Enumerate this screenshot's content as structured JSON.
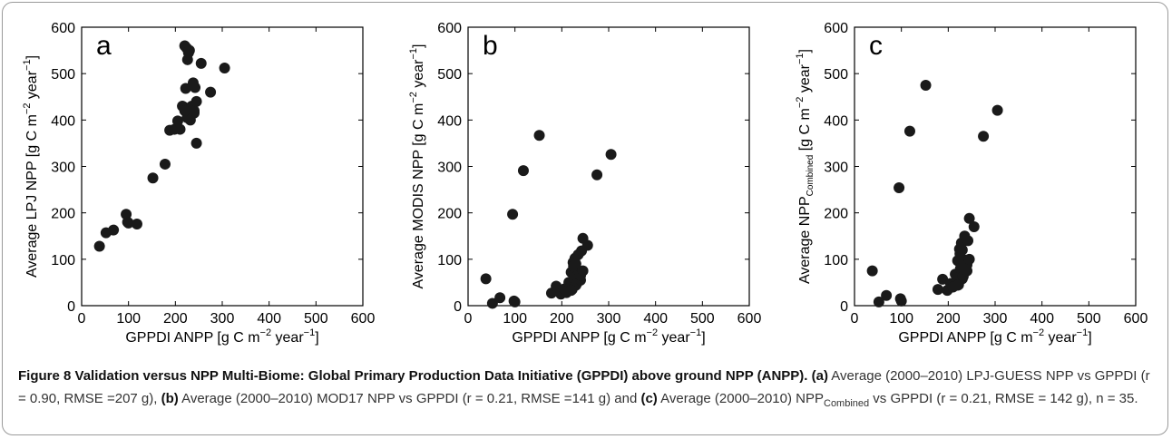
{
  "chart_data": [
    {
      "type": "scatter",
      "panel_label": "a",
      "xlabel": "GPPDI ANPP [g C m",
      "xlabel_sup": "−2",
      "xlabel_tail": "  year",
      "xlabel_sup2": "−1",
      "xlabel_end": "]",
      "ylabel": "Average LPJ NPP [g C m",
      "ylabel_sup": "−2",
      "ylabel_tail": "  year",
      "ylabel_sup2": "−1",
      "ylabel_end": "]",
      "xlim": [
        0,
        600
      ],
      "ylim": [
        0,
        600
      ],
      "xticks": [
        "0",
        "100",
        "200",
        "300",
        "400",
        "500",
        "600"
      ],
      "yticks": [
        "0",
        "100",
        "200",
        "300",
        "400",
        "500",
        "600"
      ],
      "x": [
        38,
        52,
        68,
        95,
        98,
        100,
        118,
        152,
        178,
        188,
        198,
        205,
        215,
        218,
        220,
        222,
        224,
        226,
        228,
        230,
        232,
        235,
        238,
        240,
        242,
        245,
        255,
        275,
        305,
        225,
        210,
        240,
        230,
        220,
        245
      ],
      "y": [
        128,
        157,
        163,
        197,
        180,
        178,
        176,
        275,
        305,
        378,
        380,
        398,
        430,
        428,
        560,
        468,
        555,
        530,
        545,
        425,
        400,
        430,
        480,
        415,
        470,
        350,
        522,
        460,
        512,
        405,
        380,
        420,
        550,
        420,
        440
      ]
    },
    {
      "type": "scatter",
      "panel_label": "b",
      "xlabel": "GPPDI ANPP [g C m",
      "xlabel_sup": "−2",
      "xlabel_tail": "  year",
      "xlabel_sup2": "−1",
      "xlabel_end": "]",
      "ylabel": "Average MODIS NPP [g C m",
      "ylabel_sup": "−2",
      "ylabel_tail": "  year",
      "ylabel_sup2": "−1",
      "ylabel_end": "]",
      "xlim": [
        0,
        600
      ],
      "ylim": [
        0,
        600
      ],
      "xticks": [
        "0",
        "100",
        "200",
        "300",
        "400",
        "500",
        "600"
      ],
      "yticks": [
        "0",
        "100",
        "200",
        "300",
        "400",
        "500",
        "600"
      ],
      "x": [
        38,
        52,
        68,
        95,
        98,
        100,
        118,
        152,
        178,
        188,
        198,
        205,
        215,
        218,
        220,
        222,
        224,
        226,
        228,
        230,
        232,
        235,
        238,
        240,
        242,
        245,
        255,
        275,
        305,
        225,
        210,
        240,
        230,
        220,
        245
      ],
      "y": [
        58,
        5,
        17,
        197,
        10,
        8,
        291,
        367,
        27,
        42,
        25,
        36,
        50,
        40,
        72,
        35,
        93,
        60,
        102,
        44,
        48,
        110,
        73,
        55,
        118,
        145,
        130,
        282,
        326,
        85,
        28,
        65,
        90,
        33,
        75
      ]
    },
    {
      "type": "scatter",
      "panel_label": "c",
      "xlabel": "GPPDI ANPP [g C m",
      "xlabel_sup": "−2",
      "xlabel_tail": "  year",
      "xlabel_sup2": "−1",
      "xlabel_end": "]",
      "ylabel": "Average NPP",
      "ylabel_sub": "Combined",
      "ylabel_mid": " [g C m",
      "ylabel_sup": "−2",
      "ylabel_tail": "  year",
      "ylabel_sup2": "−1",
      "ylabel_end": "]",
      "xlim": [
        0,
        600
      ],
      "ylim": [
        0,
        600
      ],
      "xticks": [
        "0",
        "100",
        "200",
        "300",
        "400",
        "500",
        "600"
      ],
      "yticks": [
        "0",
        "100",
        "200",
        "300",
        "400",
        "500",
        "600"
      ],
      "x": [
        38,
        52,
        68,
        95,
        98,
        100,
        118,
        152,
        178,
        188,
        198,
        205,
        215,
        218,
        220,
        222,
        224,
        226,
        228,
        230,
        232,
        235,
        238,
        240,
        242,
        245,
        255,
        275,
        305,
        225,
        210,
        240,
        230,
        220,
        245
      ],
      "y": [
        75,
        8,
        22,
        254,
        15,
        10,
        376,
        475,
        35,
        57,
        33,
        48,
        68,
        55,
        97,
        45,
        122,
        80,
        135,
        58,
        63,
        150,
        98,
        75,
        140,
        188,
        170,
        365,
        421,
        112,
        40,
        88,
        120,
        44,
        100
      ]
    }
  ],
  "caption": {
    "fig_label": "Figure 8",
    "fig_title": "Validation versus NPP Multi-Biome: Global Primary Production Data Initiative (GPPDI) above ground NPP (ANPP).",
    "a_label": "(a)",
    "a_text": " Average (2000–2010) LPJ-GUESS NPP vs GPPDI (r = 0.90, RMSE =207 g), ",
    "b_label": "(b)",
    "b_text": " Average (2000–2010) MOD17 NPP vs GPPDI (r = 0.21, RMSE =141 g) and ",
    "c_label": "(c)",
    "c_text_pre": " Average (2000–2010) NPP",
    "c_sub": "Combined",
    "c_text_post": " vs GPPDI (r = 0.21, RMSE = 142 g), n = 35."
  },
  "colors": {
    "marker": "#1a1a1a",
    "axis": "#000000",
    "border": "#9a9a9a"
  }
}
